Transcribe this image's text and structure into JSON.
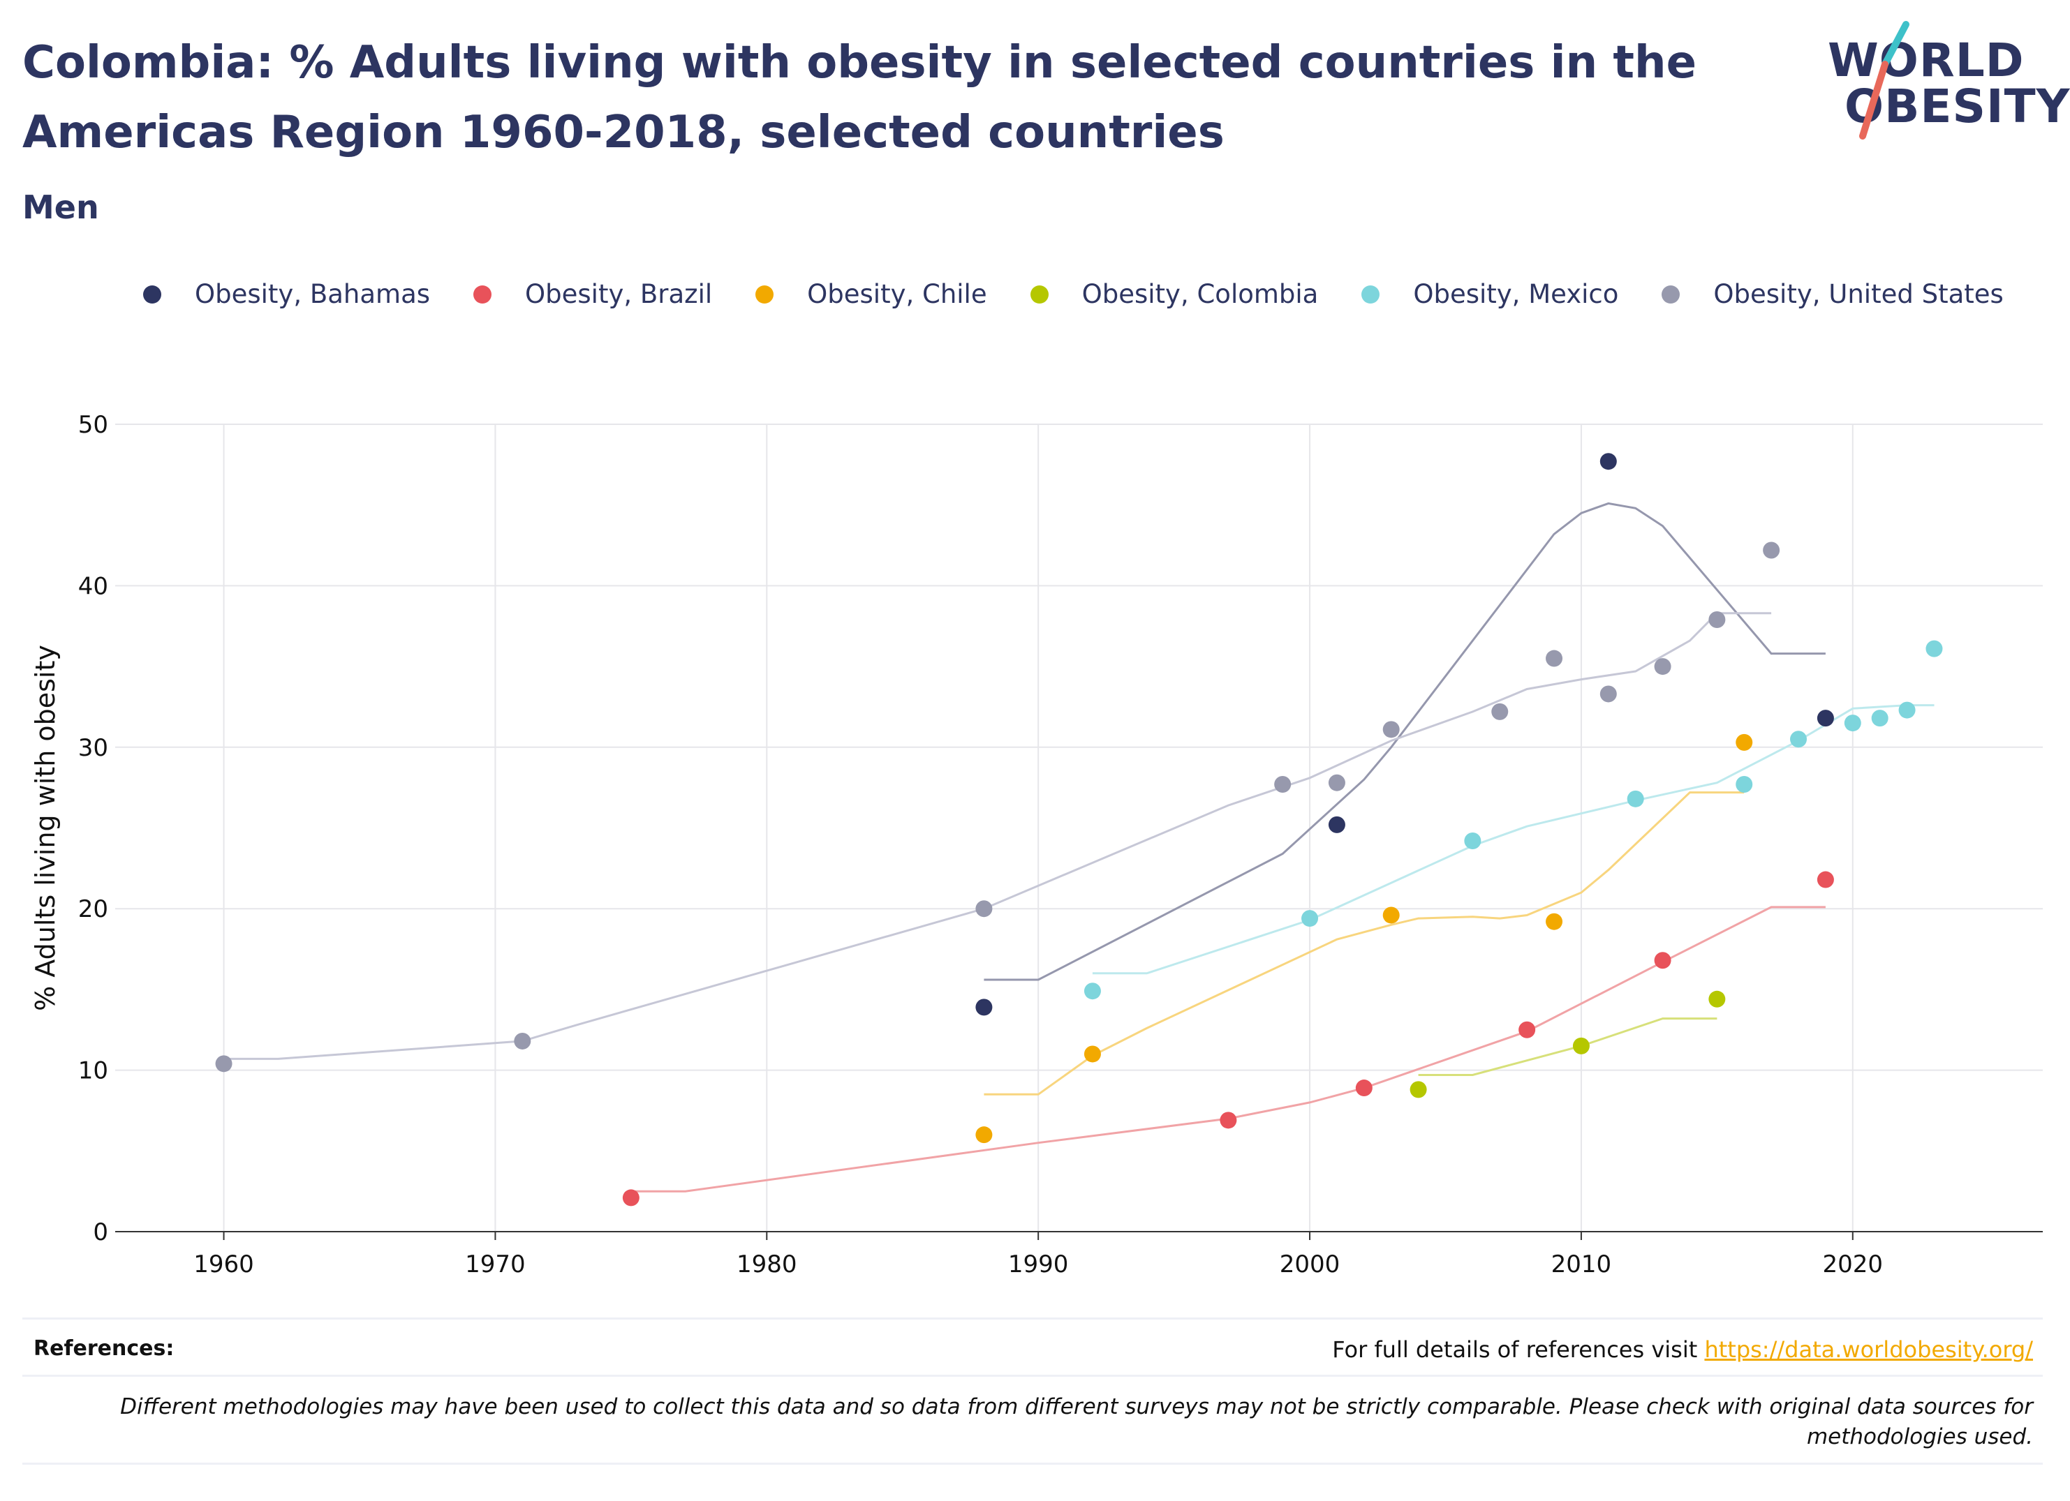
{
  "title": "Colombia: % Adults living with obesity in selected countries in the Americas Region 1960-2018, selected countries",
  "subtitle": "Men",
  "logo": {
    "line1": "WORLD",
    "line2": "OBESITY",
    "accent_colors": [
      "#3ec1c9",
      "#e8685a"
    ]
  },
  "references": {
    "label": "References:",
    "text": "For full details of references visit ",
    "link_text": "https://data.worldobesity.org/"
  },
  "disclaimer": "Different methodologies may have been used to collect this data and so data from different surveys may not be strictly comparable. Please check with original data sources for methodologies used.",
  "chart_data": {
    "type": "scatter",
    "xlabel": "",
    "ylabel": "% Adults living with obesity",
    "xlim": [
      1956,
      2027
    ],
    "ylim": [
      0,
      50
    ],
    "x_ticks": [
      1960,
      1970,
      1980,
      1990,
      2000,
      2010,
      2020
    ],
    "y_ticks": [
      0,
      10,
      20,
      30,
      40,
      50
    ],
    "grid": true,
    "legend_position": "top",
    "series": [
      {
        "name": "Obesity, Bahamas",
        "color": "#2d3561",
        "line_color": "#9597ad",
        "points": [
          [
            1988,
            13.9
          ],
          [
            2001,
            25.2
          ],
          [
            2011,
            47.7
          ],
          [
            2019,
            31.8
          ]
        ],
        "trend": [
          [
            1988,
            15.6
          ],
          [
            1990,
            15.6
          ],
          [
            1999,
            23.4
          ],
          [
            2002,
            28.0
          ],
          [
            2003,
            30.0
          ],
          [
            2009,
            43.2
          ],
          [
            2010,
            44.5
          ],
          [
            2011,
            45.1
          ],
          [
            2012,
            44.8
          ],
          [
            2013,
            43.7
          ],
          [
            2017,
            35.8
          ],
          [
            2019,
            35.8
          ]
        ]
      },
      {
        "name": "Obesity, Brazil",
        "color": "#e8525a",
        "line_color": "#f1a3a6",
        "points": [
          [
            1975,
            2.1
          ],
          [
            1997,
            6.9
          ],
          [
            2002,
            8.9
          ],
          [
            2008,
            12.5
          ],
          [
            2013,
            16.8
          ],
          [
            2019,
            21.8
          ]
        ],
        "trend": [
          [
            1975,
            2.5
          ],
          [
            1977,
            2.5
          ],
          [
            1990,
            5.5
          ],
          [
            1997,
            7.0
          ],
          [
            2000,
            8.0
          ],
          [
            2002,
            8.9
          ],
          [
            2008,
            12.4
          ],
          [
            2013,
            16.7
          ],
          [
            2017,
            20.1
          ],
          [
            2019,
            20.1
          ]
        ]
      },
      {
        "name": "Obesity, Chile",
        "color": "#f2a900",
        "line_color": "#f8d57e",
        "points": [
          [
            1988,
            6.0
          ],
          [
            1992,
            11.0
          ],
          [
            2003,
            19.6
          ],
          [
            2009,
            19.2
          ],
          [
            2016,
            30.3
          ]
        ],
        "trend": [
          [
            1988,
            8.5
          ],
          [
            1990,
            8.5
          ],
          [
            1992,
            10.9
          ],
          [
            1994,
            12.6
          ],
          [
            2001,
            18.1
          ],
          [
            2003,
            19.0
          ],
          [
            2004,
            19.4
          ],
          [
            2006,
            19.5
          ],
          [
            2007,
            19.4
          ],
          [
            2008,
            19.6
          ],
          [
            2010,
            21.0
          ],
          [
            2011,
            22.4
          ],
          [
            2014,
            27.2
          ],
          [
            2016,
            27.2
          ]
        ]
      },
      {
        "name": "Obesity, Colombia",
        "color": "#b5c700",
        "line_color": "#d7e07a",
        "points": [
          [
            2004,
            8.8
          ],
          [
            2010,
            11.5
          ],
          [
            2015,
            14.4
          ]
        ],
        "trend": [
          [
            2004,
            9.7
          ],
          [
            2006,
            9.7
          ],
          [
            2010,
            11.5
          ],
          [
            2013,
            13.2
          ],
          [
            2015,
            13.2
          ]
        ]
      },
      {
        "name": "Obesity, Mexico",
        "color": "#7dd5dc",
        "line_color": "#bde9ed",
        "points": [
          [
            1992,
            14.9
          ],
          [
            2000,
            19.4
          ],
          [
            2006,
            24.2
          ],
          [
            2012,
            26.8
          ],
          [
            2016,
            27.7
          ],
          [
            2018,
            30.5
          ],
          [
            2020,
            31.5
          ],
          [
            2021,
            31.8
          ],
          [
            2022,
            32.3
          ],
          [
            2023,
            36.1
          ]
        ],
        "trend": [
          [
            1992,
            16.0
          ],
          [
            1994,
            16.0
          ],
          [
            2000,
            19.3
          ],
          [
            2006,
            23.9
          ],
          [
            2008,
            25.1
          ],
          [
            2012,
            26.7
          ],
          [
            2015,
            27.8
          ],
          [
            2018,
            30.4
          ],
          [
            2020,
            32.4
          ],
          [
            2022,
            32.6
          ],
          [
            2023,
            32.6
          ]
        ]
      },
      {
        "name": "Obesity, United States",
        "color": "#9799ad",
        "line_color": "#c6c7d6",
        "points": [
          [
            1960,
            10.4
          ],
          [
            1971,
            11.8
          ],
          [
            1988,
            20.0
          ],
          [
            1999,
            27.7
          ],
          [
            2001,
            27.8
          ],
          [
            2003,
            31.1
          ],
          [
            2007,
            32.2
          ],
          [
            2009,
            35.5
          ],
          [
            2011,
            33.3
          ],
          [
            2013,
            35.0
          ],
          [
            2015,
            37.9
          ],
          [
            2017,
            42.2
          ]
        ],
        "trend": [
          [
            1960,
            10.7
          ],
          [
            1962,
            10.7
          ],
          [
            1971,
            11.8
          ],
          [
            1973,
            12.8
          ],
          [
            1988,
            20.0
          ],
          [
            1997,
            26.4
          ],
          [
            2000,
            28.1
          ],
          [
            2003,
            30.4
          ],
          [
            2006,
            32.2
          ],
          [
            2008,
            33.6
          ],
          [
            2010,
            34.2
          ],
          [
            2012,
            34.7
          ],
          [
            2014,
            36.6
          ],
          [
            2015,
            38.3
          ],
          [
            2017,
            38.3
          ]
        ]
      }
    ]
  }
}
